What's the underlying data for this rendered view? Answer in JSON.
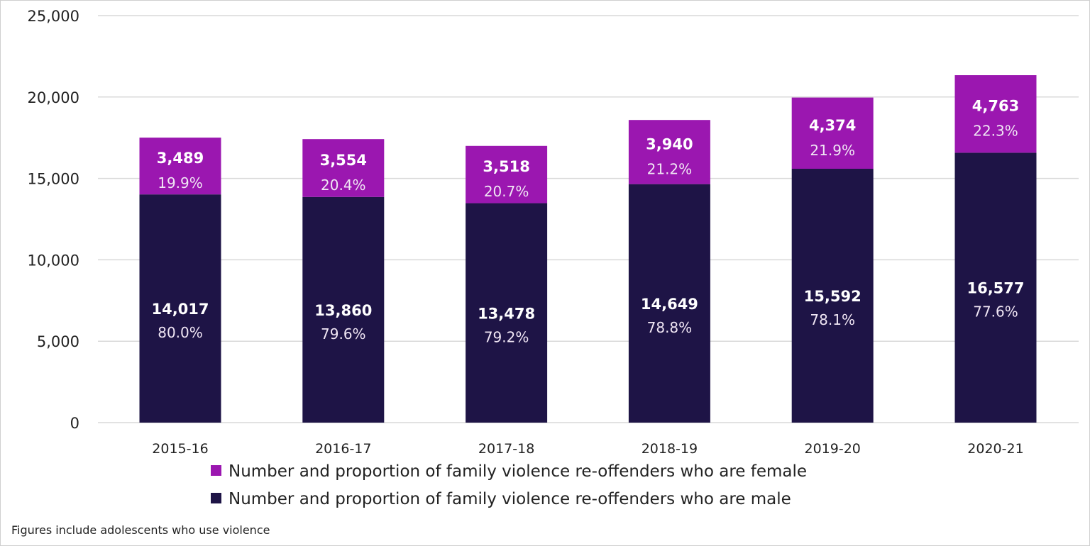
{
  "chart_data": {
    "type": "bar",
    "stacked": true,
    "categories": [
      "2015-16",
      "2016-17",
      "2017-18",
      "2018-19",
      "2019-20",
      "2020-21"
    ],
    "series": [
      {
        "name": "Number and proportion of family violence re-offenders who are male",
        "color": "#1e1446",
        "values": [
          14017,
          13860,
          13478,
          14649,
          15592,
          16577
        ],
        "value_labels": [
          "14,017",
          "13,860",
          "13,478",
          "14,649",
          "15,592",
          "16,577"
        ],
        "percent_labels": [
          "80.0%",
          "79.6%",
          "79.2%",
          "78.8%",
          "78.1%",
          "77.6%"
        ]
      },
      {
        "name": "Number and proportion of family violence re-offenders who are female",
        "color": "#9b17b0",
        "values": [
          3489,
          3554,
          3518,
          3940,
          4374,
          4763
        ],
        "value_labels": [
          "3,489",
          "3,554",
          "3,518",
          "3,940",
          "4,374",
          "4,763"
        ],
        "percent_labels": [
          "19.9%",
          "20.4%",
          "20.7%",
          "21.2%",
          "21.9%",
          "22.3%"
        ]
      }
    ],
    "ylim": [
      0,
      25000
    ],
    "yticks": [
      0,
      5000,
      10000,
      15000,
      20000,
      25000
    ],
    "ytick_labels": [
      "0",
      "5,000",
      "10,000",
      "15,000",
      "20,000",
      "25,000"
    ],
    "grid": true,
    "legend_placement": "bottom",
    "legend": [
      "Number and proportion of family violence re-offenders who are female",
      "Number and proportion of family violence re-offenders who are male"
    ],
    "note": "Figures include adolescents who use violence"
  }
}
